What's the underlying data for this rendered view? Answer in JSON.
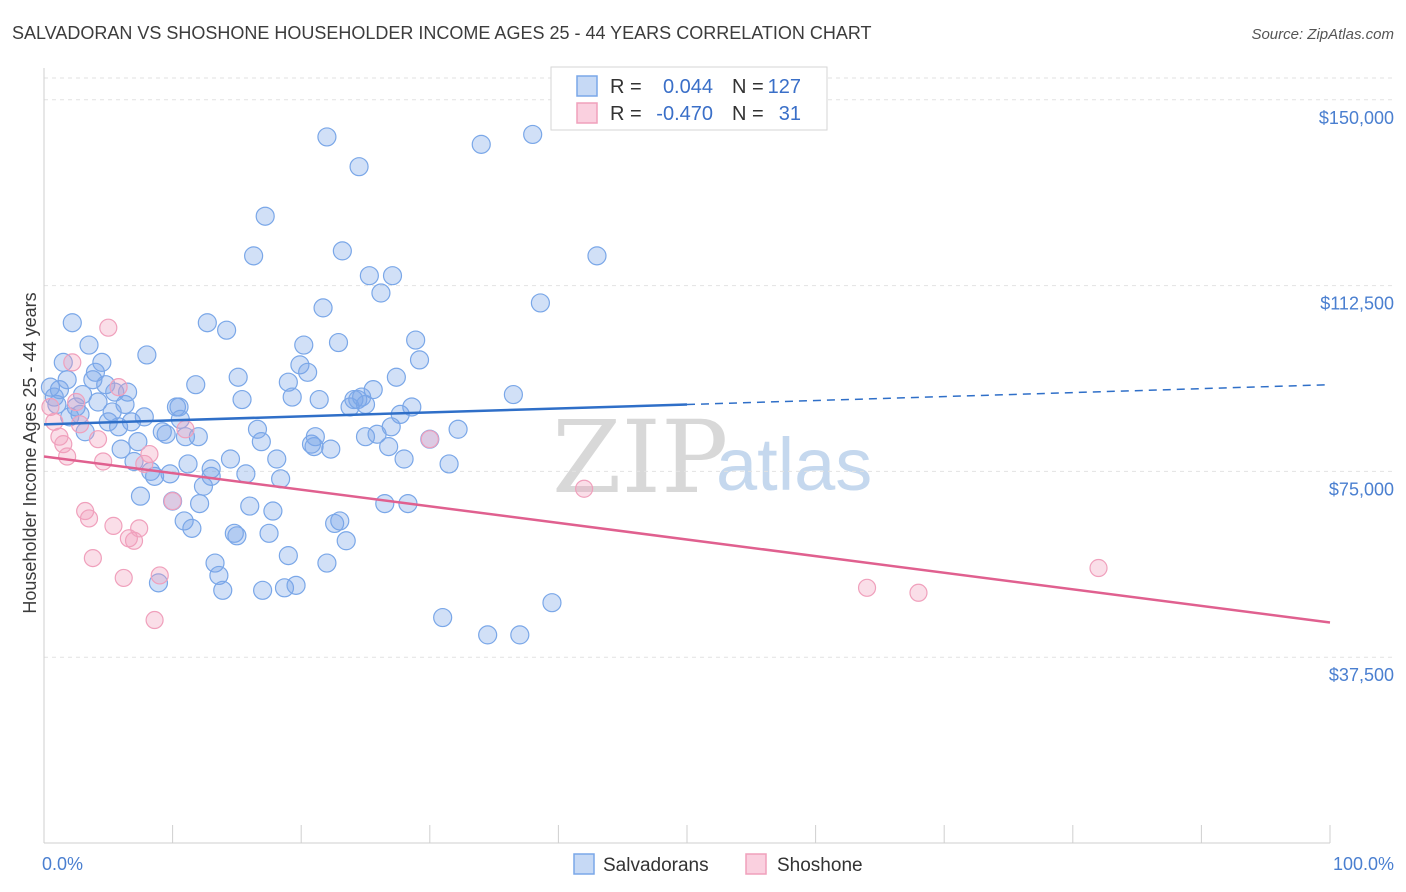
{
  "chart_data": {
    "type": "scatter",
    "title": "SALVADORAN VS SHOSHONE HOUSEHOLDER INCOME AGES 25 - 44 YEARS CORRELATION CHART",
    "source": "Source: ZipAtlas.com",
    "ylabel": "Householder Income Ages 25 - 44 years",
    "xlim": [
      0,
      100
    ],
    "ylim": [
      0,
      155000
    ],
    "x_tick_labels": [
      "0.0%",
      "100.0%"
    ],
    "y_ticks": [
      {
        "value": 150000,
        "label": "$150,000"
      },
      {
        "value": 112500,
        "label": "$112,500"
      },
      {
        "value": 75000,
        "label": "$75,000"
      },
      {
        "value": 37500,
        "label": "$37,500"
      }
    ],
    "grid": "horizontal dashed",
    "legend_position": "top-center",
    "watermark": {
      "zip": "ZIP",
      "atlas": "atlas"
    },
    "series": [
      {
        "name": "Salvadorans",
        "color": "#7aa7e8",
        "line_color": "#2f6fc8",
        "R": "0.044",
        "N": "127",
        "trend": {
          "x0": 0,
          "y0": 84500,
          "x1": 50,
          "y1": 88500,
          "dashed_to_x": 100,
          "dashed_to_y": 92500
        },
        "points": [
          [
            0.5,
            92000
          ],
          [
            0.8,
            90000
          ],
          [
            1.0,
            88500
          ],
          [
            1.2,
            91500
          ],
          [
            1.5,
            97000
          ],
          [
            1.8,
            93500
          ],
          [
            2.0,
            86000
          ],
          [
            2.2,
            105000
          ],
          [
            2.5,
            88000
          ],
          [
            2.8,
            86500
          ],
          [
            3.0,
            90500
          ],
          [
            3.2,
            83000
          ],
          [
            3.5,
            100500
          ],
          [
            3.8,
            93500
          ],
          [
            4.0,
            95000
          ],
          [
            4.2,
            89000
          ],
          [
            4.5,
            97000
          ],
          [
            4.8,
            92500
          ],
          [
            5.0,
            85000
          ],
          [
            5.3,
            87000
          ],
          [
            5.5,
            91000
          ],
          [
            5.8,
            84000
          ],
          [
            6.0,
            79500
          ],
          [
            6.3,
            88500
          ],
          [
            6.5,
            91000
          ],
          [
            6.8,
            85000
          ],
          [
            7.0,
            77000
          ],
          [
            7.3,
            81000
          ],
          [
            7.5,
            70000
          ],
          [
            7.8,
            86000
          ],
          [
            8.0,
            98500
          ],
          [
            8.3,
            75000
          ],
          [
            8.6,
            74000
          ],
          [
            8.9,
            52500
          ],
          [
            9.2,
            83000
          ],
          [
            9.5,
            82500
          ],
          [
            9.8,
            74500
          ],
          [
            10.0,
            69000
          ],
          [
            10.3,
            88000
          ],
          [
            10.6,
            85500
          ],
          [
            10.9,
            65000
          ],
          [
            11.2,
            76500
          ],
          [
            11.5,
            63500
          ],
          [
            11.8,
            92500
          ],
          [
            12.1,
            68500
          ],
          [
            12.4,
            72000
          ],
          [
            12.7,
            105000
          ],
          [
            13.0,
            75500
          ],
          [
            13.3,
            56500
          ],
          [
            13.6,
            54000
          ],
          [
            13.9,
            51000
          ],
          [
            14.2,
            103500
          ],
          [
            14.5,
            77500
          ],
          [
            14.8,
            62500
          ],
          [
            15.1,
            94000
          ],
          [
            15.4,
            89500
          ],
          [
            15.7,
            74500
          ],
          [
            16.0,
            68000
          ],
          [
            16.3,
            118500
          ],
          [
            16.6,
            83500
          ],
          [
            16.9,
            81000
          ],
          [
            17.2,
            126500
          ],
          [
            17.5,
            62500
          ],
          [
            17.8,
            67000
          ],
          [
            18.1,
            77500
          ],
          [
            18.4,
            73500
          ],
          [
            18.7,
            51500
          ],
          [
            19.0,
            93000
          ],
          [
            19.3,
            90000
          ],
          [
            19.6,
            52000
          ],
          [
            19.9,
            96500
          ],
          [
            20.2,
            100500
          ],
          [
            20.5,
            95000
          ],
          [
            20.8,
            80500
          ],
          [
            21.1,
            82000
          ],
          [
            21.4,
            89500
          ],
          [
            21.7,
            108000
          ],
          [
            22.0,
            56500
          ],
          [
            22.3,
            79500
          ],
          [
            22.6,
            64500
          ],
          [
            22.9,
            101000
          ],
          [
            23.2,
            119500
          ],
          [
            23.5,
            61000
          ],
          [
            23.8,
            88000
          ],
          [
            24.1,
            89500
          ],
          [
            24.4,
            89500
          ],
          [
            24.7,
            90000
          ],
          [
            25.0,
            82000
          ],
          [
            25.3,
            114500
          ],
          [
            25.6,
            91500
          ],
          [
            25.9,
            82500
          ],
          [
            26.2,
            111000
          ],
          [
            26.5,
            68500
          ],
          [
            26.8,
            80000
          ],
          [
            27.1,
            114500
          ],
          [
            27.4,
            94000
          ],
          [
            27.7,
            86500
          ],
          [
            28.0,
            77500
          ],
          [
            28.3,
            68500
          ],
          [
            28.6,
            88000
          ],
          [
            28.9,
            101500
          ],
          [
            29.2,
            97500
          ],
          [
            30.0,
            81500
          ],
          [
            31.0,
            45500
          ],
          [
            31.5,
            76500
          ],
          [
            32.2,
            83500
          ],
          [
            34.0,
            141000
          ],
          [
            34.5,
            42000
          ],
          [
            36.5,
            90500
          ],
          [
            37.0,
            42000
          ],
          [
            38.0,
            143000
          ],
          [
            38.6,
            109000
          ],
          [
            39.5,
            48500
          ],
          [
            43.0,
            118500
          ],
          [
            11.0,
            82000
          ],
          [
            13.0,
            74000
          ],
          [
            15.0,
            62000
          ],
          [
            17.0,
            51000
          ],
          [
            19.0,
            58000
          ],
          [
            21.0,
            80000
          ],
          [
            23.0,
            65000
          ],
          [
            25.0,
            88500
          ],
          [
            27.0,
            84000
          ],
          [
            22.0,
            142500
          ],
          [
            24.5,
            136500
          ],
          [
            10.5,
            88000
          ],
          [
            12.0,
            82000
          ]
        ]
      },
      {
        "name": "Shoshone",
        "color": "#f0a0bc",
        "line_color": "#e0608f",
        "R": "-0.470",
        "N": "31",
        "trend": {
          "x0": 0,
          "y0": 78000,
          "x1": 100,
          "y1": 44500
        },
        "points": [
          [
            0.5,
            88000
          ],
          [
            0.8,
            85000
          ],
          [
            1.2,
            82000
          ],
          [
            1.5,
            80500
          ],
          [
            1.8,
            78000
          ],
          [
            2.2,
            97000
          ],
          [
            2.5,
            89000
          ],
          [
            2.8,
            84500
          ],
          [
            3.2,
            67000
          ],
          [
            3.5,
            65500
          ],
          [
            3.8,
            57500
          ],
          [
            4.2,
            81500
          ],
          [
            4.6,
            77000
          ],
          [
            5.0,
            104000
          ],
          [
            5.4,
            64000
          ],
          [
            5.8,
            92000
          ],
          [
            6.2,
            53500
          ],
          [
            6.6,
            61500
          ],
          [
            7.0,
            61000
          ],
          [
            7.4,
            63500
          ],
          [
            7.8,
            76500
          ],
          [
            8.2,
            78500
          ],
          [
            8.6,
            45000
          ],
          [
            9.0,
            54000
          ],
          [
            10.0,
            69000
          ],
          [
            11.0,
            83500
          ],
          [
            30.0,
            81500
          ],
          [
            42.0,
            71500
          ],
          [
            64.0,
            51500
          ],
          [
            68.0,
            50500
          ],
          [
            82.0,
            55500
          ]
        ]
      }
    ]
  }
}
